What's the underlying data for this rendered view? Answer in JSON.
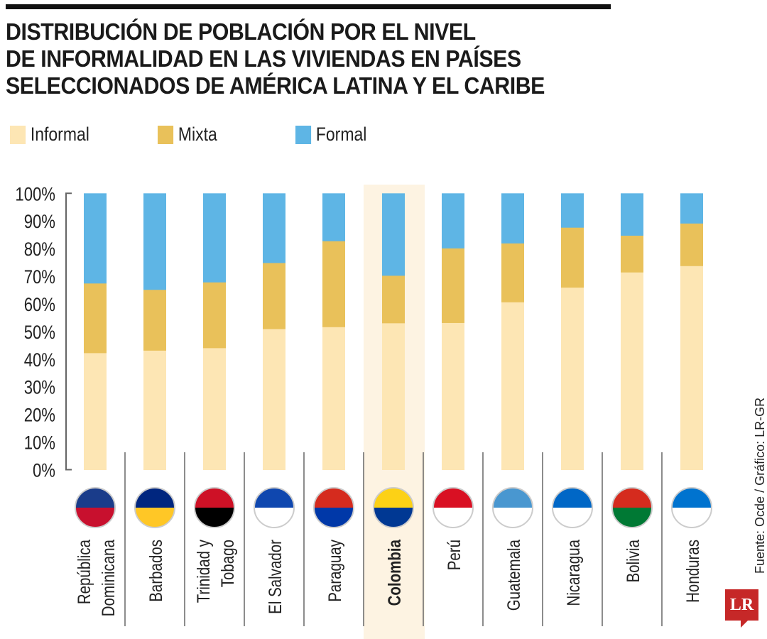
{
  "chart_data": {
    "type": "bar",
    "stacked": true,
    "title": "DISTRIBUCIÓN DE POBLACIÓN POR EL NIVEL DE INFORMALIDAD EN LAS VIVIENDAS EN PAÍSES SELECCIONADOS DE AMÉRICA LATINA Y EL CARIBE",
    "title_lines": [
      "DISTRIBUCIÓN DE POBLACIÓN POR EL NIVEL",
      "DE INFORMALIDAD EN LAS VIVIENDAS EN PAÍSES",
      "SELECCIONADOS DE AMÉRICA LATINA Y EL CARIBE"
    ],
    "categories": [
      "República Dominicana",
      "Barbados",
      "Trinidad y Tobago",
      "El Salvador",
      "Paraguay",
      "Colombia",
      "Perú",
      "Guatemala",
      "Nicaragua",
      "Bolivia",
      "Honduras"
    ],
    "category_lines": [
      [
        "República",
        "Dominicana"
      ],
      [
        "Barbados"
      ],
      [
        "Trinidad y",
        "Tobago"
      ],
      [
        "El Salvador"
      ],
      [
        "Paraguay"
      ],
      [
        "Colombia"
      ],
      [
        "Perú"
      ],
      [
        "Guatemala"
      ],
      [
        "Nicaragua"
      ],
      [
        "Bolivia"
      ],
      [
        "Honduras"
      ]
    ],
    "highlight": "Colombia",
    "series": [
      {
        "name": "Informal",
        "color": "#fde6b4",
        "values": [
          42.3,
          43.2,
          44.1,
          51.0,
          51.7,
          53.1,
          53.2,
          60.7,
          66.0,
          71.5,
          73.8
        ]
      },
      {
        "name": "Mixta",
        "color": "#e9c15a",
        "values": [
          25.2,
          22.0,
          23.8,
          23.9,
          31.1,
          17.2,
          27.0,
          21.3,
          21.7,
          13.3,
          15.4
        ]
      },
      {
        "name": "Formal",
        "color": "#5eb5e5",
        "values": [
          32.5,
          34.8,
          32.1,
          25.1,
          17.2,
          29.7,
          19.8,
          18.0,
          12.3,
          15.2,
          10.8
        ]
      }
    ],
    "yticks": [
      "0%",
      "10%",
      "20%",
      "30%",
      "40%",
      "50%",
      "60%",
      "70%",
      "80%",
      "90%",
      "100%"
    ],
    "ylim": [
      0,
      100
    ],
    "legend_placement": "top-left",
    "source": "Fuente: Ocde / Gráfico: LR-GR"
  },
  "logo": "LR"
}
